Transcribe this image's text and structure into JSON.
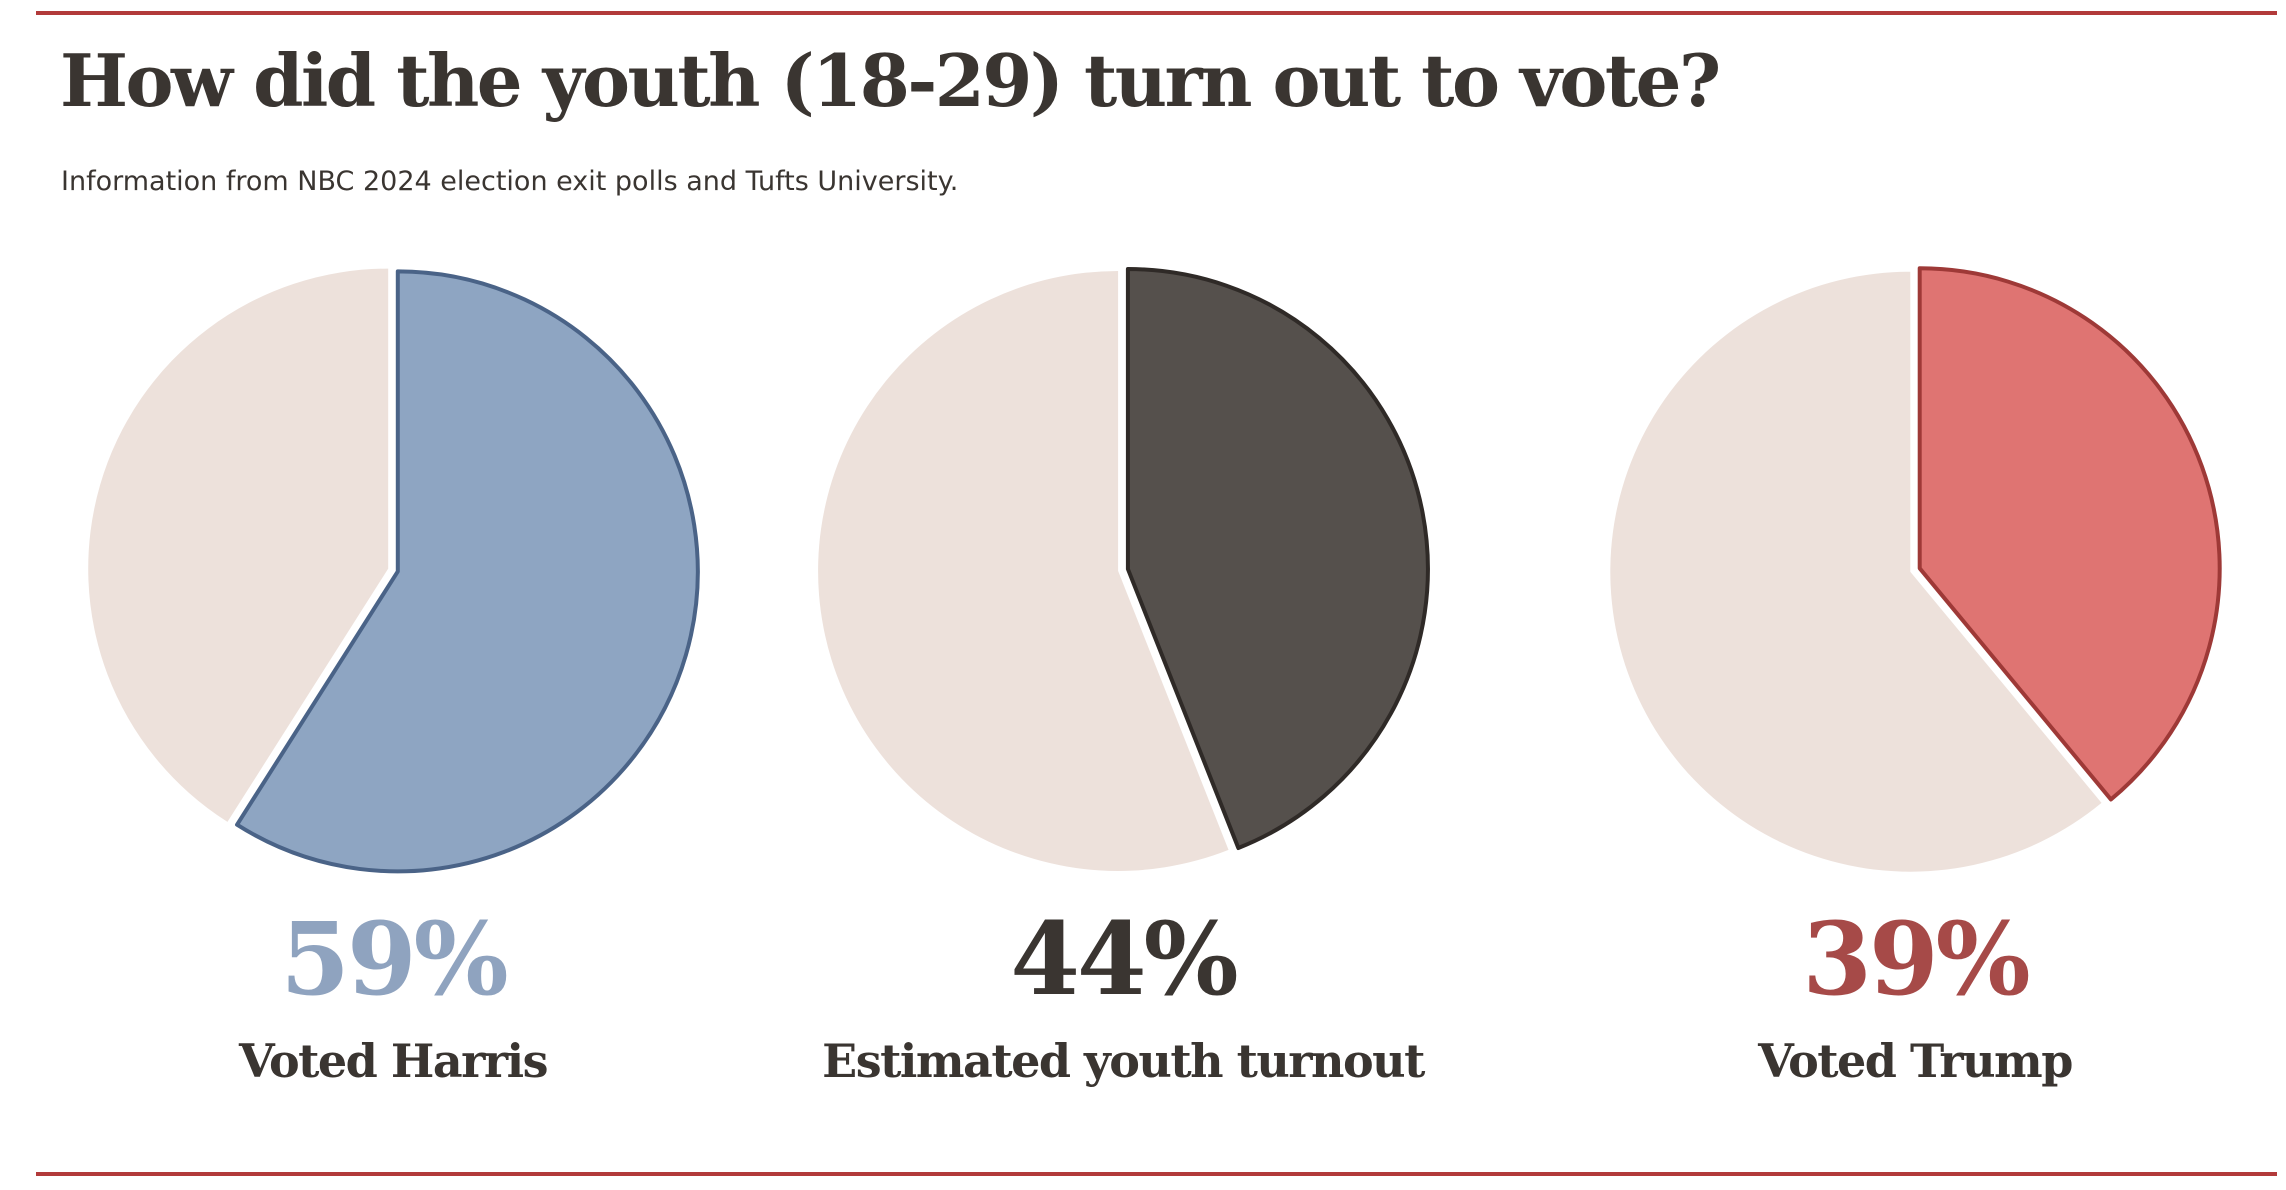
{
  "header": {
    "title": "How did the youth (18-29) turn out to vote?",
    "subtitle": "Information from NBC 2024 election exit polls and Tufts University."
  },
  "colors": {
    "rule": "#b23a3a",
    "text": "#3a3531",
    "background_slice": "#ede1db",
    "harris": "#8ea5c2",
    "harris_stroke": "#4a6387",
    "turnout": "#55504c",
    "turnout_stroke": "#2f2a27",
    "trump": "#df7472",
    "trump_stroke": "#9e3937",
    "harris_text": "#8fa3bf",
    "turnout_text": "#3a3531",
    "trump_text": "#a64a48"
  },
  "chart_data": [
    {
      "type": "pie",
      "slices": [
        {
          "label": "Voted Harris",
          "value": 59
        },
        {
          "label": "",
          "value": 41
        }
      ],
      "value_label": "59%",
      "caption": "Voted Harris"
    },
    {
      "type": "pie",
      "slices": [
        {
          "label": "Estimated youth turnout",
          "value": 44
        },
        {
          "label": "",
          "value": 56
        }
      ],
      "value_label": "44%",
      "caption": "Estimated youth turnout"
    },
    {
      "type": "pie",
      "slices": [
        {
          "label": "Voted Trump",
          "value": 39
        },
        {
          "label": "",
          "value": 61
        }
      ],
      "value_label": "39%",
      "caption": "Voted Trump"
    }
  ]
}
